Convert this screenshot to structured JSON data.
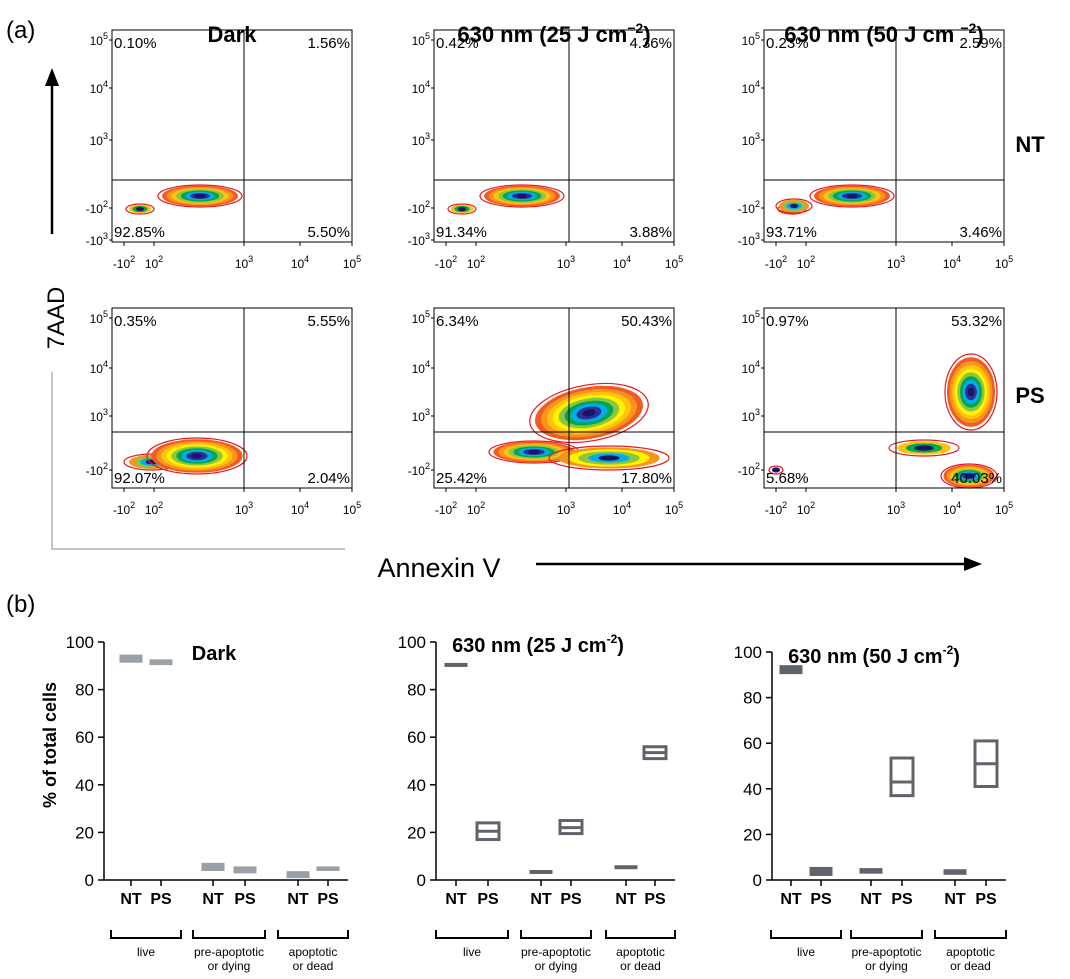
{
  "panel_a": {
    "label": "(a)",
    "y_axis_label": "7AAD",
    "x_axis_label": "Annexin V",
    "columns": [
      {
        "title": "Dark"
      },
      {
        "title": "630 nm (25 J cm",
        "title_sup": "−2",
        "title_end": ")"
      },
      {
        "title": "630 nm (50 J cm ",
        "title_sup": "−2",
        "title_end": ")"
      }
    ],
    "rows": [
      {
        "label": "NT"
      },
      {
        "label": "PS"
      }
    ],
    "y_ticks_top": [
      {
        "base": "10",
        "exp": "5"
      },
      {
        "base": "10",
        "exp": "4"
      },
      {
        "base": "10",
        "exp": "3"
      },
      {
        "base": "-10",
        "exp": "2"
      },
      {
        "base": "-10",
        "exp": "3"
      }
    ],
    "y_ticks_bottom": [
      {
        "base": "10",
        "exp": "5"
      },
      {
        "base": "10",
        "exp": "4"
      },
      {
        "base": "10",
        "exp": "3"
      },
      {
        "base": "-10",
        "exp": "2"
      }
    ],
    "x_ticks": [
      {
        "base": "-10",
        "exp": "2"
      },
      {
        "base": "10",
        "exp": "2"
      },
      {
        "base": "10",
        "exp": "3"
      },
      {
        "base": "10",
        "exp": "4"
      },
      {
        "base": "10",
        "exp": "5"
      }
    ]
  },
  "panel_b": {
    "label": "(b)",
    "y_axis_label": "% of total cells",
    "y_ticks": [
      "0",
      "20",
      "40",
      "60",
      "80",
      "100"
    ],
    "group_labels": [
      [
        "live"
      ],
      [
        "pre-apoptotic",
        "or dying"
      ],
      [
        "apoptotic",
        "or dead"
      ]
    ],
    "bar_labels": [
      "NT",
      "PS",
      "NT",
      "PS",
      "NT",
      "PS"
    ]
  },
  "chart_data": [
    {
      "type": "scatter",
      "title": "Dark",
      "row": "NT",
      "xlabel": "Annexin V",
      "ylabel": "7AAD",
      "quadrants": {
        "upper_left": "0.10%",
        "upper_right": "1.56%",
        "lower_left": "92.85%",
        "lower_right": "5.50%"
      }
    },
    {
      "type": "scatter",
      "title": "630 nm (25 J cm−2)",
      "row": "NT",
      "xlabel": "Annexin V",
      "ylabel": "7AAD",
      "quadrants": {
        "upper_left": "0.42%",
        "upper_right": "4.36%",
        "lower_left": "91.34%",
        "lower_right": "3.88%"
      }
    },
    {
      "type": "scatter",
      "title": "630 nm (50 J cm −2)",
      "row": "NT",
      "xlabel": "Annexin V",
      "ylabel": "7AAD",
      "quadrants": {
        "upper_left": "0.23%",
        "upper_right": "2.59%",
        "lower_left": "93.71%",
        "lower_right": "3.46%"
      }
    },
    {
      "type": "scatter",
      "title": "Dark",
      "row": "PS",
      "xlabel": "Annexin V",
      "ylabel": "7AAD",
      "quadrants": {
        "upper_left": "0.35%",
        "upper_right": "5.55%",
        "lower_left": "92.07%",
        "lower_right": "2.04%"
      }
    },
    {
      "type": "scatter",
      "title": "630 nm (25 J cm−2)",
      "row": "PS",
      "xlabel": "Annexin V",
      "ylabel": "7AAD",
      "quadrants": {
        "upper_left": "6.34%",
        "upper_right": "50.43%",
        "lower_left": "25.42%",
        "lower_right": "17.80%"
      }
    },
    {
      "type": "scatter",
      "title": "630 nm (50 J cm −2)",
      "row": "PS",
      "xlabel": "Annexin V",
      "ylabel": "7AAD",
      "quadrants": {
        "upper_left": "0.97%",
        "upper_right": "53.32%",
        "lower_left": "5.68%",
        "lower_right": "40.03%"
      }
    },
    {
      "type": "bar",
      "title": "Dark",
      "title_sup": "",
      "ylabel": "% of total cells",
      "ylim": [
        0,
        100
      ],
      "categories": [
        "NT",
        "PS",
        "NT",
        "PS",
        "NT",
        "PS"
      ],
      "groups": [
        "live",
        "pre-apoptotic or dying",
        "apoptotic or dead"
      ],
      "ranges": [
        [
          91.5,
          94.5
        ],
        [
          90.5,
          92.5
        ],
        [
          4,
          7
        ],
        [
          3,
          5.5
        ],
        [
          1,
          3.5
        ],
        [
          4,
          5.5
        ]
      ],
      "means": [
        93,
        91.5,
        5.5,
        4.2,
        2.2,
        4.7
      ],
      "bar_color": "#9aa0a8"
    },
    {
      "type": "bar",
      "title": "630 nm (25 J cm",
      "title_sup": "-2",
      "title_end": ")",
      "ylabel": "% of total cells",
      "ylim": [
        0,
        100
      ],
      "categories": [
        "NT",
        "PS",
        "NT",
        "PS",
        "NT",
        "PS"
      ],
      "groups": [
        "live",
        "pre-apoptotic or dying",
        "apoptotic or dead"
      ],
      "ranges": [
        [
          90,
          91
        ],
        [
          17,
          24
        ],
        [
          3,
          4
        ],
        [
          19.5,
          25
        ],
        [
          5,
          6
        ],
        [
          51,
          56
        ]
      ],
      "means": [
        90.5,
        20.5,
        3.5,
        22,
        5.5,
        53.5
      ],
      "bar_color": "#5f636b"
    },
    {
      "type": "bar",
      "title": "630 nm (50 J cm",
      "title_sup": "-2",
      "title_end": ")",
      "ylabel": "% of total cells",
      "ylim": [
        0,
        100
      ],
      "categories": [
        "NT",
        "PS",
        "NT",
        "PS",
        "NT",
        "PS"
      ],
      "groups": [
        "live",
        "pre-apoptotic or dying",
        "apoptotic or dead"
      ],
      "ranges": [
        [
          90.5,
          94
        ],
        [
          2,
          5.5
        ],
        [
          3,
          5
        ],
        [
          37,
          53.5
        ],
        [
          2.5,
          4.5
        ],
        [
          41,
          61
        ]
      ],
      "means": [
        92,
        4,
        4,
        43,
        3.5,
        51
      ],
      "bar_color": "#5f636b"
    }
  ]
}
